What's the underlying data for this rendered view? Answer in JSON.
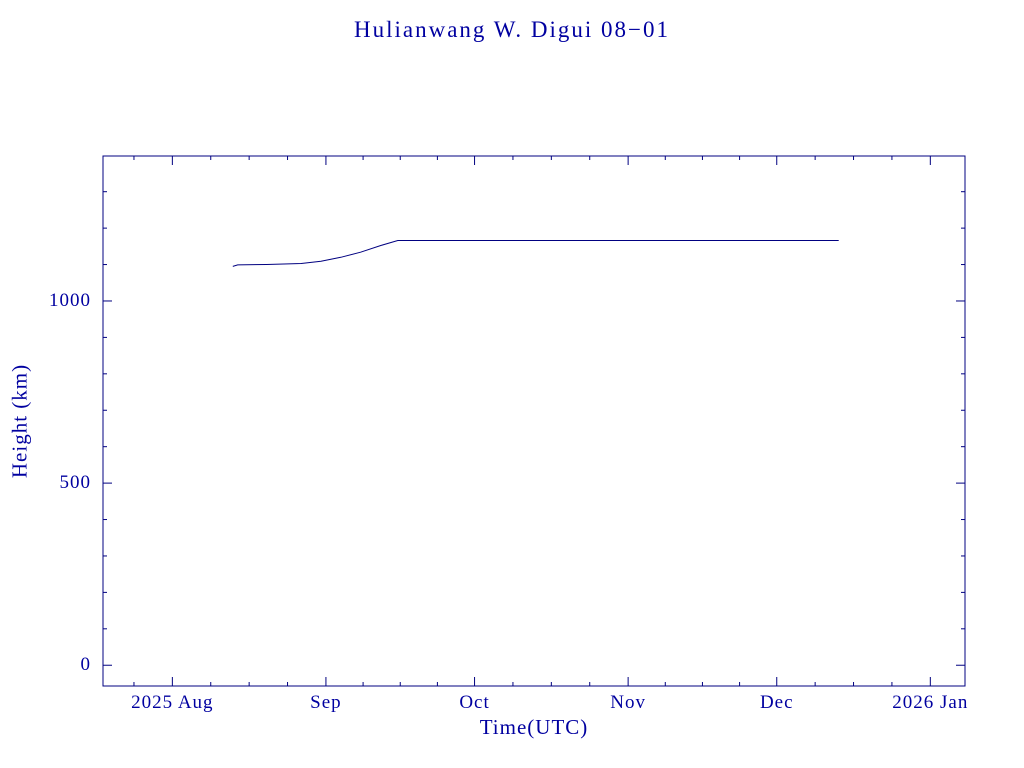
{
  "chart_data": {
    "type": "line",
    "title": "Hulianwang W. Digui 08−01",
    "xlabel": "Time(UTC)",
    "ylabel": "Height (km)",
    "text_color": "#0000a0",
    "line_color": "#000080",
    "background": "#ffffff",
    "x_unit": "days since 2025-08-01",
    "xlim": [
      -14,
      160
    ],
    "ylim": [
      -57,
      1398
    ],
    "grid": false,
    "legend": "none",
    "x_major_ticks": [
      {
        "day": 0,
        "label": "2025 Aug"
      },
      {
        "day": 31,
        "label": "Sep"
      },
      {
        "day": 61,
        "label": "Oct"
      },
      {
        "day": 92,
        "label": "Nov"
      },
      {
        "day": 122,
        "label": "Dec"
      },
      {
        "day": 153,
        "label": "2026 Jan"
      }
    ],
    "x_minor_ticks": [
      -7.75,
      7.75,
      15.5,
      23.25,
      38.5,
      46,
      53.5,
      68.75,
      76.5,
      84.25,
      99.5,
      107,
      114.5,
      129.75,
      137.5,
      145.25,
      160.75
    ],
    "y_major_ticks": [
      {
        "value": 0,
        "label": "0"
      },
      {
        "value": 500,
        "label": "500"
      },
      {
        "value": 1000,
        "label": "1000"
      }
    ],
    "y_minor_ticks": [
      100,
      200,
      300,
      400,
      600,
      700,
      800,
      900,
      1100,
      1200,
      1300
    ],
    "series": [
      {
        "name": "height",
        "points": [
          [
            12.2,
            1095
          ],
          [
            13.2,
            1099
          ],
          [
            19,
            1100
          ],
          [
            26,
            1103
          ],
          [
            30,
            1109
          ],
          [
            34,
            1120
          ],
          [
            38,
            1134
          ],
          [
            42,
            1152
          ],
          [
            45.5,
            1166
          ],
          [
            134.5,
            1166
          ]
        ]
      }
    ]
  }
}
